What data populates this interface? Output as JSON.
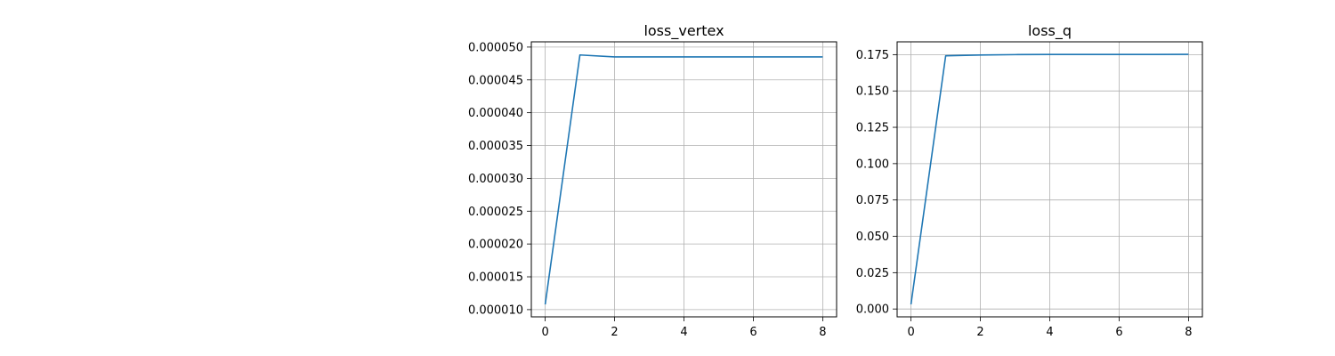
{
  "chart_data": [
    {
      "type": "line",
      "title": "loss_vertex",
      "xlabel": "",
      "ylabel": "",
      "x": [
        0,
        1,
        2,
        3,
        4,
        5,
        6,
        7,
        8
      ],
      "series": [
        {
          "values": [
            1.08e-05,
            4.88e-05,
            4.85e-05,
            4.85e-05,
            4.85e-05,
            4.85e-05,
            4.85e-05,
            4.85e-05,
            4.85e-05
          ]
        }
      ],
      "xlim": [
        -0.4,
        8.4
      ],
      "ylim": [
        8.9e-06,
        5.08e-05
      ],
      "xticks": [
        0,
        2,
        4,
        6,
        8
      ],
      "xtick_labels": [
        "0",
        "2",
        "4",
        "6",
        "8"
      ],
      "yticks": [
        1e-05,
        1.5e-05,
        2e-05,
        2.5e-05,
        3e-05,
        3.5e-05,
        4e-05,
        4.5e-05,
        5e-05
      ],
      "ytick_labels": [
        "0.000010",
        "0.000015",
        "0.000020",
        "0.000025",
        "0.000030",
        "0.000035",
        "0.000040",
        "0.000045",
        "0.000050"
      ],
      "grid": true,
      "line_color": "#1f77b4"
    },
    {
      "type": "line",
      "title": "loss_q",
      "xlabel": "",
      "ylabel": "",
      "x": [
        0,
        1,
        2,
        3,
        4,
        5,
        6,
        7,
        8
      ],
      "series": [
        {
          "values": [
            0.0032,
            0.1742,
            0.1747,
            0.175,
            0.1751,
            0.1751,
            0.1751,
            0.1751,
            0.1752
          ]
        }
      ],
      "xlim": [
        -0.4,
        8.4
      ],
      "ylim": [
        -0.0054,
        0.1838
      ],
      "xticks": [
        0,
        2,
        4,
        6,
        8
      ],
      "xtick_labels": [
        "0",
        "2",
        "4",
        "6",
        "8"
      ],
      "yticks": [
        0,
        0.025,
        0.05,
        0.075,
        0.1,
        0.125,
        0.15,
        0.175
      ],
      "ytick_labels": [
        "0.000",
        "0.025",
        "0.050",
        "0.075",
        "0.100",
        "0.125",
        "0.150",
        "0.175"
      ],
      "grid": true,
      "line_color": "#1f77b4"
    }
  ]
}
